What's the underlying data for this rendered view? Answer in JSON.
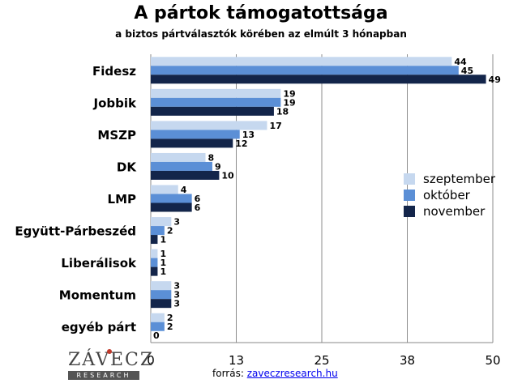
{
  "chart_data": {
    "type": "bar",
    "orientation": "horizontal",
    "title": "A pártok támogatottsága",
    "subtitle": "a biztos pártválasztók körében az elmúlt 3 hónapban",
    "categories": [
      "Fidesz",
      "Jobbik",
      "MSZP",
      "DK",
      "LMP",
      "Együtt-Párbeszéd",
      "Liberálisok",
      "Momentum",
      "egyéb párt"
    ],
    "series": [
      {
        "name": "szeptember",
        "color": "#c6d8ef",
        "values": [
          44,
          19,
          17,
          8,
          4,
          3,
          1,
          3,
          2
        ]
      },
      {
        "name": "október",
        "color": "#5b8fd6",
        "values": [
          45,
          19,
          13,
          9,
          6,
          2,
          1,
          3,
          2
        ]
      },
      {
        "name": "november",
        "color": "#13254a",
        "values": [
          49,
          18,
          12,
          10,
          6,
          1,
          1,
          3,
          0
        ]
      }
    ],
    "xlim": [
      0,
      50
    ],
    "xticks": [
      "0",
      "13",
      "25",
      "38",
      "50"
    ],
    "grid": true,
    "legend_position": "right"
  },
  "logo": {
    "name": "ZÁVECZ",
    "sub": "RESEARCH"
  },
  "source": {
    "label": "forrás:",
    "link": "zaveczresearch.hu"
  }
}
